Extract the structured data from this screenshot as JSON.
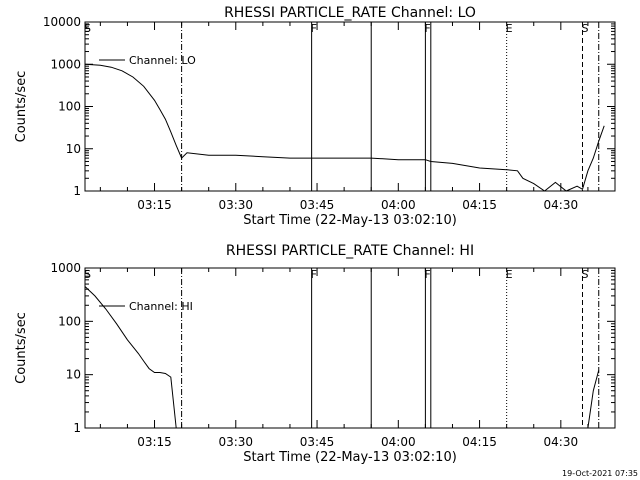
{
  "chart_data": [
    {
      "type": "line",
      "title": "RHESSI PARTICLE_RATE Channel: LO",
      "xlabel": "Start Time (22-May-13 03:02:10)",
      "ylabel": "Counts/sec",
      "yscale": "log",
      "ylim": [
        1,
        10000
      ],
      "xlim": [
        "03:02:10",
        "04:40:00"
      ],
      "grid": false,
      "legend": {
        "position": "top-left",
        "entries": [
          "Channel: LO"
        ]
      },
      "x_ticks": [
        "03:15",
        "03:30",
        "03:45",
        "04:00",
        "04:15",
        "04:30"
      ],
      "y_ticks": [
        "1",
        "10",
        "100",
        "1000",
        "10000"
      ],
      "markers": [
        {
          "label": "S",
          "time": "03:02:10",
          "style": "solid"
        },
        {
          "label": "",
          "time": "03:20:00",
          "style": "dashdot"
        },
        {
          "label": "F",
          "time": "03:44:00",
          "style": "solid"
        },
        {
          "label": "",
          "time": "03:55:00",
          "style": "solid"
        },
        {
          "label": "F",
          "time": "04:05:00",
          "style": "solid"
        },
        {
          "label": "",
          "time": "04:06:00",
          "style": "solid"
        },
        {
          "label": "E",
          "time": "04:20:00",
          "style": "dotted"
        },
        {
          "label": "S",
          "time": "04:34:00",
          "style": "dashed"
        },
        {
          "label": "",
          "time": "04:37:00",
          "style": "dashdot"
        }
      ],
      "series": [
        {
          "name": "Channel: LO",
          "x": [
            "03:02:10",
            "03:05:00",
            "03:07:00",
            "03:09:00",
            "03:11:00",
            "03:13:00",
            "03:15:00",
            "03:16:00",
            "03:17:00",
            "03:18:00",
            "03:19:00",
            "03:20:00",
            "03:21:00",
            "03:25:00",
            "03:30:00",
            "03:35:00",
            "03:40:00",
            "03:45:00",
            "03:50:00",
            "03:55:00",
            "04:00:00",
            "04:05:00",
            "04:06:00",
            "04:10:00",
            "04:15:00",
            "04:20:00",
            "04:22:00",
            "04:23:00",
            "04:25:00",
            "04:27:00",
            "04:29:00",
            "04:31:00",
            "04:33:00",
            "04:34:00",
            "04:35:00",
            "04:36:00",
            "04:37:00",
            "04:38:00"
          ],
          "values": [
            1000,
            950,
            850,
            700,
            500,
            300,
            140,
            85,
            50,
            25,
            12,
            6,
            8,
            7,
            7,
            6.5,
            6,
            6,
            6,
            6,
            5.5,
            5.5,
            5,
            4.5,
            3.5,
            3.2,
            3,
            2,
            1.5,
            1,
            1.6,
            1,
            1.3,
            1.1,
            3,
            6,
            15,
            35
          ]
        }
      ]
    },
    {
      "type": "line",
      "title": "RHESSI PARTICLE_RATE Channel: HI",
      "xlabel": "Start Time (22-May-13 03:02:10)",
      "ylabel": "Counts/sec",
      "yscale": "log",
      "ylim": [
        1,
        1000
      ],
      "xlim": [
        "03:02:10",
        "04:40:00"
      ],
      "grid": false,
      "legend": {
        "position": "top-left",
        "entries": [
          "Channel: HI"
        ]
      },
      "x_ticks": [
        "03:15",
        "03:30",
        "03:45",
        "04:00",
        "04:15",
        "04:30"
      ],
      "y_ticks": [
        "1",
        "10",
        "100",
        "1000"
      ],
      "markers": [
        {
          "label": "S",
          "time": "03:02:10",
          "style": "solid"
        },
        {
          "label": "",
          "time": "03:20:00",
          "style": "dashdot"
        },
        {
          "label": "F",
          "time": "03:44:00",
          "style": "solid"
        },
        {
          "label": "",
          "time": "03:55:00",
          "style": "solid"
        },
        {
          "label": "F",
          "time": "04:05:00",
          "style": "solid"
        },
        {
          "label": "",
          "time": "04:06:00",
          "style": "solid"
        },
        {
          "label": "E",
          "time": "04:20:00",
          "style": "dotted"
        },
        {
          "label": "S",
          "time": "04:34:00",
          "style": "dashed"
        },
        {
          "label": "",
          "time": "04:37:00",
          "style": "dashdot"
        }
      ],
      "series": [
        {
          "name": "Channel: HI",
          "x": [
            "03:02:10",
            "03:04:00",
            "03:06:00",
            "03:08:00",
            "03:10:00",
            "03:12:00",
            "03:13:00",
            "03:14:00",
            "03:15:00",
            "03:16:00",
            "03:17:00",
            "03:18:00",
            "03:19:00",
            "04:35:00",
            "04:36:00",
            "04:37:00"
          ],
          "values": [
            450,
            300,
            170,
            90,
            45,
            25,
            18,
            13,
            11,
            11,
            10.5,
            9,
            1,
            1,
            5,
            12
          ]
        }
      ]
    }
  ],
  "footer": {
    "timestamp": "19-Oct-2021 07:35"
  }
}
